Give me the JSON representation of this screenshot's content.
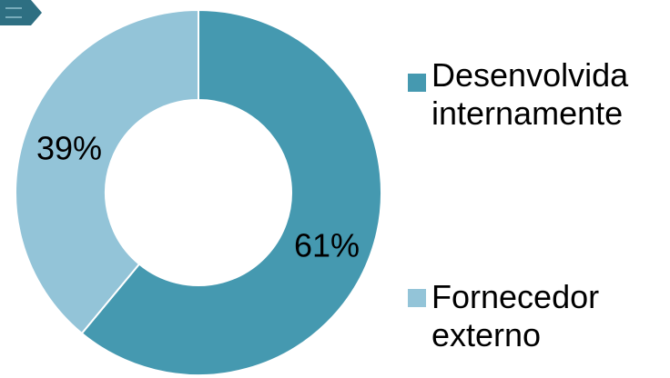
{
  "chart_data": {
    "type": "pie",
    "variant": "donut",
    "title": "",
    "slices": [
      {
        "label": "Desenvolvida internamente",
        "value": 61,
        "display": "61%",
        "color": "#4599b0"
      },
      {
        "label": "Fornecedor externo",
        "value": 39,
        "display": "39%",
        "color": "#93c4d8"
      }
    ],
    "legend_position": "right"
  },
  "decor": {
    "corner_icon_color": "#2e6f82"
  }
}
